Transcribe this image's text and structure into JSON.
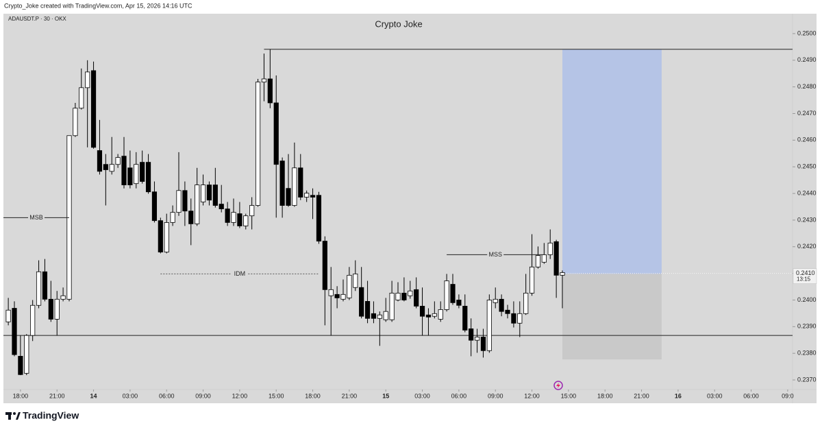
{
  "brand": "TradingView",
  "chart_data": {
    "type": "candlestick",
    "caption": "Crypto_Joke created with TradingView.com, Apr 15, 2026 14:16 UTC",
    "symbol": "ADAUSDT.P · 30 · OKX",
    "title": "Crypto Joke",
    "up_color": "#ffffff",
    "down_color": "#000000",
    "open": [
      0.23918,
      0.23969,
      0.23789,
      0.23725,
      0.23867,
      0.2398,
      0.24106,
      0.24003,
      0.23928,
      0.24003,
      0.24003,
      0.24617,
      0.2472,
      0.24797,
      0.24861,
      0.24561,
      0.24509,
      0.24483,
      0.24509,
      0.2454,
      0.24496,
      0.24437,
      0.24517,
      0.24517,
      0.24406,
      0.24298,
      0.2418,
      0.24291,
      0.24329,
      0.24411,
      0.24334,
      0.24286,
      0.24368,
      0.24432,
      0.24432,
      0.2436,
      0.24342,
      0.24291,
      0.24324,
      0.24278,
      0.24316,
      0.24355,
      0.24818,
      0.2483,
      0.2474,
      0.24522,
      0.24419,
      0.24355,
      0.24496,
      0.24386,
      0.24393,
      0.24393,
      0.24221,
      0.24016,
      0.24021,
      0.24003,
      0.24008,
      0.24047,
      0.24047,
      0.23995,
      0.23949,
      0.23931,
      0.23926,
      0.23926,
      0.24,
      0.24026,
      0.24016,
      0.24039,
      0.23977,
      0.23944,
      0.23939,
      0.23928,
      0.23964,
      0.24059,
      0.24,
      0.23977,
      0.23892,
      0.23849,
      0.23861,
      0.2381,
      0.2399,
      0.24003,
      0.23962,
      0.23949,
      0.23913,
      0.23949,
      0.24026,
      0.24124,
      0.24142,
      0.2417,
      0.24219,
      0.24093
    ],
    "high": [
      0.24008,
      0.23995,
      0.23867,
      0.23872,
      0.24,
      0.24149,
      0.24154,
      0.24072,
      0.24034,
      0.24047,
      0.24617,
      0.2474,
      0.24869,
      0.249,
      0.24895,
      0.24676,
      0.24548,
      0.24612,
      0.24548,
      0.24612,
      0.24561,
      0.24555,
      0.24561,
      0.24548,
      0.24445,
      0.24309,
      0.24324,
      0.24355,
      0.24555,
      0.24445,
      0.24381,
      0.24496,
      0.24471,
      0.24445,
      0.24496,
      0.24432,
      0.24368,
      0.24381,
      0.24368,
      0.24324,
      0.24386,
      0.2483,
      0.24925,
      0.24941,
      0.24843,
      0.24535,
      0.24548,
      0.24591,
      0.24548,
      0.24411,
      0.24419,
      0.24406,
      0.24239,
      0.24124,
      0.24052,
      0.24077,
      0.24124,
      0.24149,
      0.24124,
      0.24072,
      0.23995,
      0.23957,
      0.24008,
      0.24072,
      0.24067,
      0.24085,
      0.24072,
      0.24085,
      0.24047,
      0.23969,
      0.23995,
      0.23995,
      0.24098,
      0.24098,
      0.24021,
      0.24021,
      0.23931,
      0.23892,
      0.23892,
      0.24021,
      0.24047,
      0.24021,
      0.23982,
      0.23995,
      0.23995,
      0.24098,
      0.24247,
      0.24201,
      0.24214,
      0.24265,
      0.24226,
      0.24111
    ],
    "low": [
      0.23905,
      0.23789,
      0.23718,
      0.23718,
      0.23846,
      0.23969,
      0.23995,
      0.23918,
      0.23867,
      0.23995,
      0.23995,
      0.24612,
      0.24715,
      0.24573,
      0.24568,
      0.24471,
      0.24355,
      0.24471,
      0.24496,
      0.24419,
      0.24419,
      0.24419,
      0.24437,
      0.24399,
      0.24291,
      0.24175,
      0.24175,
      0.24278,
      0.24316,
      0.24278,
      0.24206,
      0.24278,
      0.24355,
      0.24355,
      0.24347,
      0.24329,
      0.24278,
      0.24278,
      0.2427,
      0.24265,
      0.24265,
      0.2435,
      0.24746,
      0.2472,
      0.24309,
      0.24309,
      0.2435,
      0.2435,
      0.24375,
      0.24368,
      0.24304,
      0.24211,
      0.23905,
      0.23867,
      0.23969,
      0.23995,
      0.24,
      0.24034,
      0.23931,
      0.23913,
      0.23913,
      0.23828,
      0.23918,
      0.23918,
      0.23995,
      0.23995,
      0.24005,
      0.23969,
      0.23867,
      0.23867,
      0.23931,
      0.23918,
      0.23957,
      0.23982,
      0.23969,
      0.23879,
      0.23789,
      0.23802,
      0.23784,
      0.23802,
      0.23969,
      0.23939,
      0.23931,
      0.23897,
      0.23861,
      0.23944,
      0.24016,
      0.24118,
      0.24136,
      0.24154,
      0.24008,
      0.23969
    ],
    "close": [
      0.23962,
      0.23795,
      0.2372,
      0.23867,
      0.2398,
      0.24106,
      0.24003,
      0.23928,
      0.24003,
      0.24016,
      0.24617,
      0.2472,
      0.24797,
      0.24856,
      0.24573,
      0.24483,
      0.24489,
      0.24509,
      0.24535,
      0.24432,
      0.24432,
      0.24509,
      0.24445,
      0.24406,
      0.24298,
      0.2418,
      0.24291,
      0.24329,
      0.24411,
      0.24334,
      0.24286,
      0.24432,
      0.24432,
      0.24375,
      0.24355,
      0.24342,
      0.24291,
      0.24329,
      0.24278,
      0.24316,
      0.24355,
      0.24818,
      0.2483,
      0.2474,
      0.24509,
      0.24355,
      0.24355,
      0.24496,
      0.24386,
      0.24401,
      0.24386,
      0.24221,
      0.24039,
      0.24039,
      0.24008,
      0.24021,
      0.24093,
      0.24098,
      0.23939,
      0.23931,
      0.23931,
      0.23944,
      0.23957,
      0.24026,
      0.24026,
      0.24,
      0.24034,
      0.23977,
      0.23939,
      0.23936,
      0.23949,
      0.23964,
      0.24072,
      0.2399,
      0.2398,
      0.23887,
      0.23849,
      0.23861,
      0.2381,
      0.24,
      0.24003,
      0.23957,
      0.23949,
      0.23913,
      0.23949,
      0.24026,
      0.24124,
      0.24167,
      0.2417,
      0.24214,
      0.24093,
      0.24103
    ],
    "xlim": [
      -0.8,
      128.8
    ],
    "xticks": [
      {
        "value": 2,
        "label": "18:00"
      },
      {
        "value": 8,
        "label": "21:00"
      },
      14,
      {
        "value": 20,
        "label": "03:00"
      },
      {
        "value": 26,
        "label": "06:00"
      },
      {
        "value": 32,
        "label": "09:00"
      },
      {
        "value": 38,
        "label": "12:00"
      },
      {
        "value": 44,
        "label": "15:00"
      },
      {
        "value": 50,
        "label": "18:00"
      },
      {
        "value": 56,
        "label": "21:00"
      },
      {
        "value": 62,
        "label": "15"
      },
      {
        "value": 68,
        "label": "03:00"
      },
      {
        "value": 74,
        "label": "06:00"
      },
      {
        "value": 80,
        "label": "09:00"
      },
      {
        "value": 86,
        "label": "12:00"
      },
      {
        "value": 92,
        "label": "15:00"
      },
      {
        "value": 98,
        "label": "18:00"
      },
      {
        "value": 104,
        "label": "21:00"
      },
      {
        "value": 110,
        "label": "16"
      },
      {
        "value": 116,
        "label": "03:00"
      },
      {
        "value": 122,
        "label": "06:00"
      },
      {
        "value": 128,
        "label": "09:0"
      }
    ],
    "ylim": [
      0.23664,
      0.25054
    ],
    "yticks": [
      {
        "value": 0.25,
        "label": "0.2500"
      },
      {
        "value": 0.249,
        "label": "0.2490"
      },
      {
        "value": 0.248,
        "label": "0.2480"
      },
      {
        "value": 0.247,
        "label": "0.2470"
      },
      {
        "value": 0.246,
        "label": "0.2460"
      },
      {
        "value": 0.245,
        "label": "0.2450"
      },
      {
        "value": 0.244,
        "label": "0.2440"
      },
      {
        "value": 0.243,
        "label": "0.2430"
      },
      {
        "value": 0.242,
        "label": "0.2420"
      },
      {
        "value": 0.241,
        "label": "0.2410"
      },
      {
        "value": 0.24,
        "label": "0.2400"
      },
      {
        "value": 0.239,
        "label": "0.2390"
      },
      {
        "value": 0.238,
        "label": "0.2380"
      },
      {
        "value": 0.237,
        "label": "0.2370"
      }
    ],
    "annotations": [
      {
        "label": "MSB",
        "price": 0.24309,
        "from": -0.8,
        "to": 10
      },
      {
        "label": "IDM",
        "price": 0.24098,
        "from": 25,
        "to": 51
      },
      {
        "label": "MSS",
        "price": 0.2417,
        "from": 72,
        "to": 88
      }
    ],
    "levels": [
      {
        "price": 0.24941,
        "from": 42,
        "to": 128.8
      },
      {
        "price": 0.23867,
        "from": -0.8,
        "to": 128.8
      }
    ],
    "position": {
      "entry": 0.24098,
      "target": 0.24941,
      "stop": 0.23777,
      "from": 91,
      "to": 107.3,
      "target_color": "#b5c4e6",
      "stop_color": "#c9c9c9"
    },
    "last_price": {
      "value": 0.241,
      "label": "0.2410"
    },
    "countdown": "13:15"
  }
}
